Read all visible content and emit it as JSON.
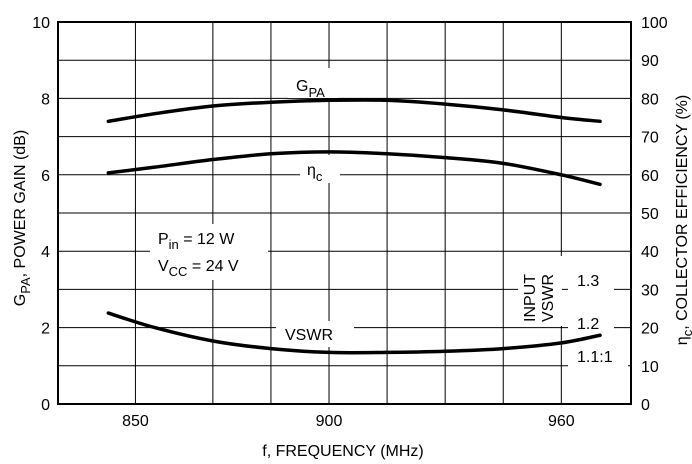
{
  "chart_data": {
    "type": "line",
    "xlabel": "f, FREQUENCY (MHz)",
    "ylabel_left": {
      "main": "G",
      "sub": "PA",
      "rest": ", POWER GAIN (dB)"
    },
    "ylabel_right": {
      "main": "η",
      "sub": "c",
      "rest": ", COLLECTOR EFFICIENCY (%)"
    },
    "xlim": [
      830,
      978
    ],
    "ylim_left": [
      0,
      10
    ],
    "ylim_right": [
      0,
      100
    ],
    "x_ticks": [
      850,
      900,
      960
    ],
    "x_tick_labels": [
      "850",
      "900",
      "960"
    ],
    "x_grid": [
      850,
      870,
      885,
      900,
      915,
      930,
      945,
      960
    ],
    "y_ticks_left": [
      0,
      2,
      4,
      6,
      8,
      10
    ],
    "y_tick_labels_left": [
      "0",
      "2",
      "4",
      "6",
      "8",
      "10"
    ],
    "y_ticks_right": [
      0,
      10,
      20,
      30,
      40,
      50,
      60,
      70,
      80,
      90,
      100
    ],
    "y_tick_labels_right": [
      "0",
      "10",
      "20",
      "30",
      "40",
      "50",
      "60",
      "70",
      "80",
      "90",
      "100"
    ],
    "grid": true,
    "series": [
      {
        "name": "G_PA",
        "axis": "left",
        "unit": "dB",
        "x": [
          843,
          855,
          870,
          885,
          900,
          915,
          930,
          945,
          960,
          970
        ],
        "y": [
          7.4,
          7.6,
          7.8,
          7.9,
          7.95,
          7.95,
          7.85,
          7.7,
          7.5,
          7.4
        ]
      },
      {
        "name": "η_c",
        "axis": "right",
        "unit": "%",
        "x": [
          843,
          855,
          870,
          885,
          900,
          915,
          930,
          945,
          960,
          970
        ],
        "y": [
          60.5,
          62,
          64,
          65.5,
          66,
          65.5,
          64.5,
          63,
          60,
          57.5
        ]
      },
      {
        "name": "VSWR",
        "axis": "left_mapped",
        "unit": "ratio",
        "x": [
          843,
          855,
          870,
          885,
          900,
          915,
          930,
          945,
          960,
          970
        ],
        "y": [
          2.38,
          2.0,
          1.65,
          1.45,
          1.35,
          1.35,
          1.38,
          1.45,
          1.6,
          1.8
        ]
      }
    ],
    "curve_labels": {
      "gpa": {
        "main": "G",
        "sub": "PA"
      },
      "etac": {
        "main": "η",
        "sub": "c"
      },
      "vswr": "VSWR"
    },
    "conditions": [
      {
        "main": "P",
        "sub": "in",
        "rest": " = 12 W"
      },
      {
        "main": "V",
        "sub": "CC",
        "rest": " = 24 V"
      }
    ],
    "vswr_scale": {
      "title_line1": "INPUT",
      "title_line2": "VSWR",
      "labels": [
        {
          "text": "1.3",
          "at": 3.0
        },
        {
          "text": "1.2",
          "at": 2.0
        },
        {
          "text": "1.1:1",
          "at": 1.0
        }
      ]
    }
  }
}
